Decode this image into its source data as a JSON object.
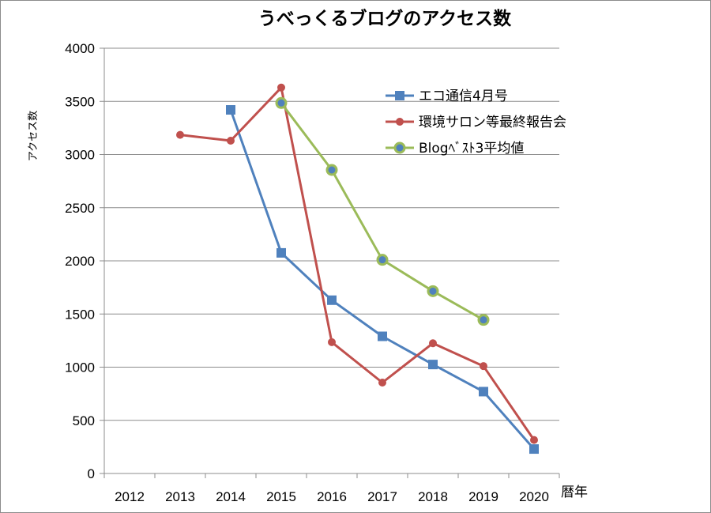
{
  "chart_data": {
    "type": "line",
    "title": "うべっくるブログのアクセス数",
    "xlabel": "暦年",
    "ylabel": "アクセス数",
    "categories": [
      "2012",
      "2013",
      "2014",
      "2015",
      "2016",
      "2017",
      "2018",
      "2019",
      "2020"
    ],
    "ylim": [
      0,
      4000
    ],
    "yticks": [
      0,
      500,
      1000,
      1500,
      2000,
      2500,
      3000,
      3500,
      4000
    ],
    "grid": "horizontal",
    "legend_position": "top-right",
    "series": [
      {
        "name": "エコ通信4月号",
        "color": "#4f81bd",
        "marker": "square",
        "values": [
          null,
          null,
          3420,
          2075,
          1630,
          1290,
          1025,
          770,
          230
        ]
      },
      {
        "name": "環境サロン等最終報告会",
        "color": "#c0504d",
        "marker": "circle",
        "values": [
          null,
          3185,
          3130,
          3630,
          1235,
          855,
          1225,
          1010,
          315
        ]
      },
      {
        "name": "Blogﾍﾞｽﾄ3平均値",
        "color": "#9bbb59",
        "marker": "ring",
        "values": [
          null,
          null,
          null,
          3485,
          2855,
          2010,
          1715,
          1445,
          null
        ]
      }
    ]
  }
}
